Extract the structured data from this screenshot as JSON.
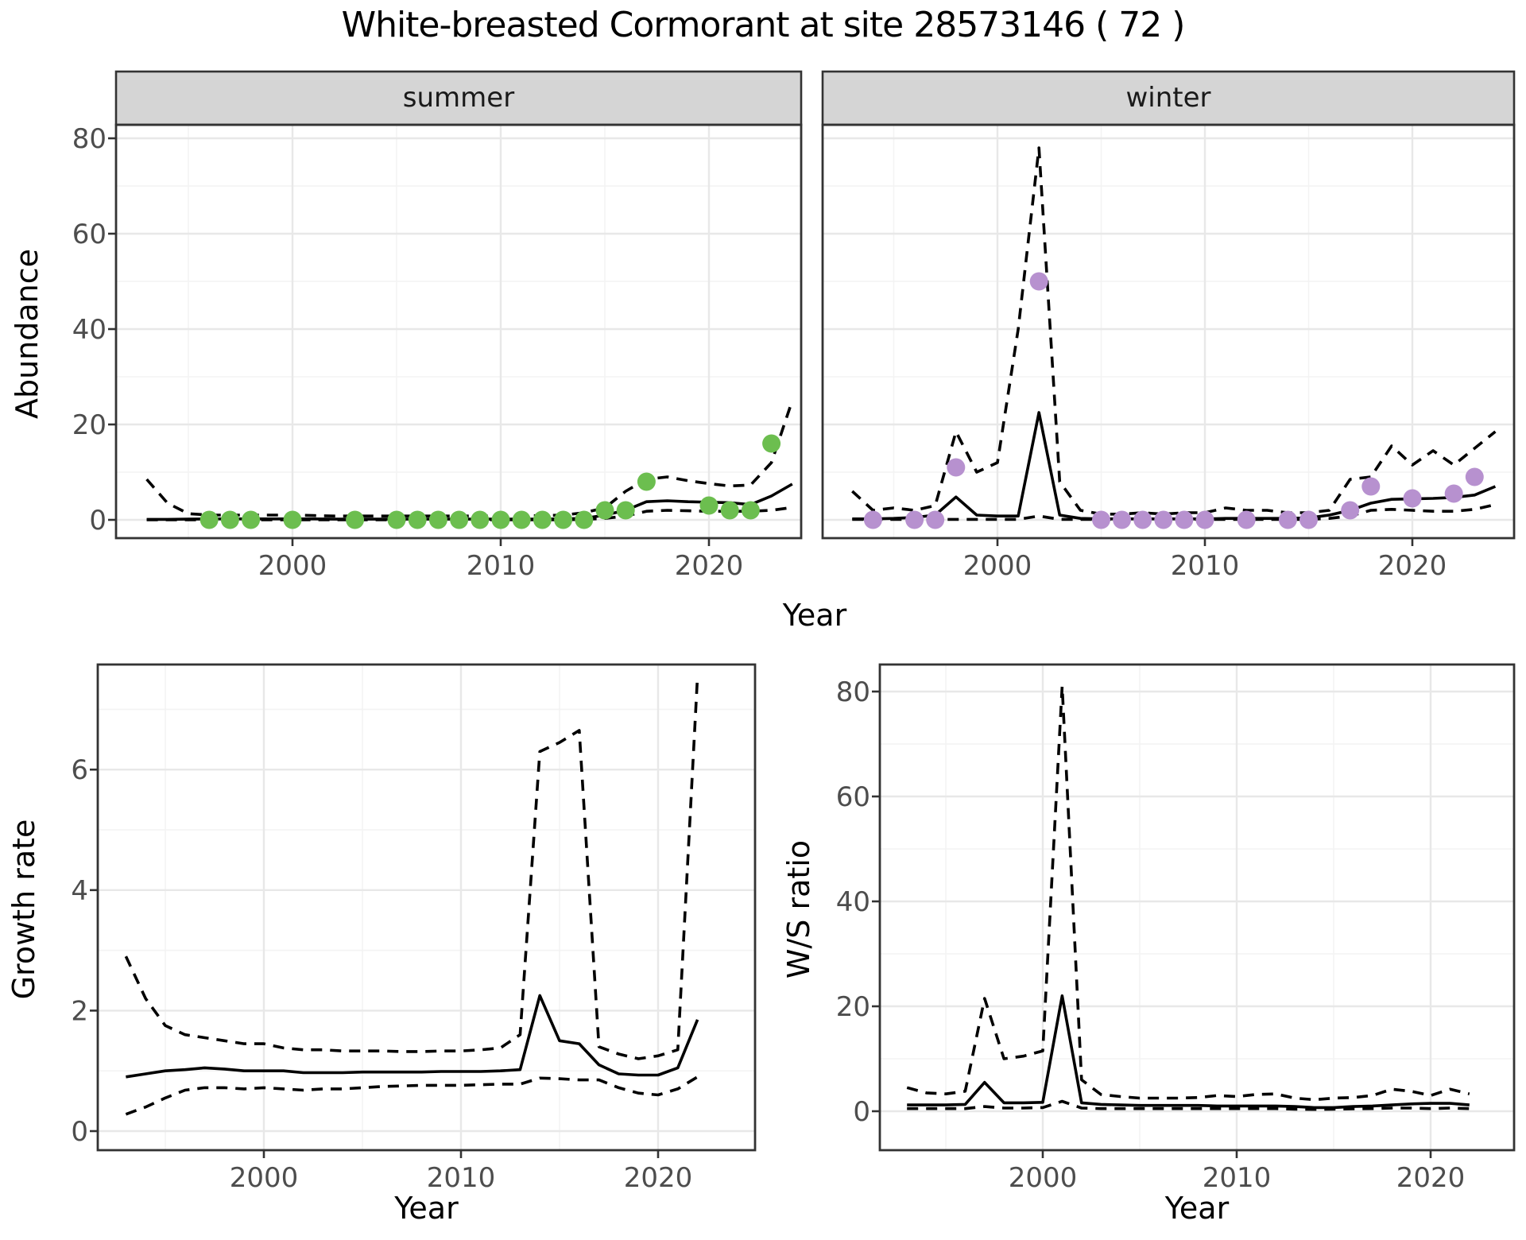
{
  "title": "White-breasted Cormorant at site 28573146 ( 72 )",
  "facets": [
    {
      "label": "summer"
    },
    {
      "label": "winter"
    }
  ],
  "colors": {
    "summer_dot": "#6CBE4F",
    "winter_dot": "#B791CF",
    "line": "#000000",
    "strip_bg": "#D5D5D5",
    "panel_border": "#333333",
    "grid_major": "#E8E8E8",
    "grid_minor": "#F3F3F3",
    "tick_mark": "#333333",
    "tick_label": "#4D4D4D",
    "panel_bg": "#FFFFFF"
  },
  "chart_data": [
    {
      "type": "line",
      "panel": "abundance-summer",
      "facet_label": "summer",
      "xlabel": "Year",
      "ylabel": "Abundance",
      "x_ticks": [
        2000,
        2010,
        2020
      ],
      "x_minor": [
        1995,
        2005,
        2015
      ],
      "y_ticks": [
        0,
        20,
        40,
        60,
        80
      ],
      "y_minor": [
        10,
        30,
        50,
        70
      ],
      "xlim": [
        1991.5,
        2024.6
      ],
      "ylim": [
        -4,
        83
      ],
      "grid": true,
      "legend": "none",
      "series": [
        {
          "name": "fit",
          "style": "solid",
          "x": [
            1993,
            1994,
            1995,
            1996,
            1997,
            1998,
            1999,
            2000,
            2001,
            2002,
            2003,
            2004,
            2005,
            2006,
            2007,
            2008,
            2009,
            2010,
            2011,
            2012,
            2013,
            2014,
            2015,
            2016,
            2017,
            2018,
            2019,
            2020,
            2021,
            2022,
            2023,
            2024
          ],
          "y": [
            0.1,
            0.1,
            0.15,
            0.2,
            0.2,
            0.2,
            0.2,
            0.2,
            0.2,
            0.15,
            0.15,
            0.15,
            0.15,
            0.15,
            0.15,
            0.15,
            0.15,
            0.15,
            0.15,
            0.15,
            0.2,
            0.3,
            1.0,
            2.0,
            3.8,
            4.0,
            3.8,
            3.7,
            3.6,
            3.2,
            5.0,
            7.5
          ]
        },
        {
          "name": "upper-ci",
          "style": "dashed",
          "x": [
            1993,
            1994,
            1995,
            1996,
            1997,
            1998,
            1999,
            2000,
            2001,
            2002,
            2003,
            2004,
            2005,
            2006,
            2007,
            2008,
            2009,
            2010,
            2011,
            2012,
            2013,
            2014,
            2015,
            2016,
            2017,
            2018,
            2019,
            2020,
            2021,
            2022,
            2023,
            2024
          ],
          "y": [
            8.5,
            3.5,
            1.3,
            1.0,
            1.0,
            1.0,
            1.0,
            1.0,
            0.9,
            0.8,
            0.8,
            0.8,
            0.8,
            0.8,
            0.8,
            0.8,
            0.8,
            0.8,
            0.8,
            0.9,
            1.0,
            1.5,
            2.5,
            6.0,
            8.5,
            9.0,
            8.2,
            7.6,
            7.1,
            7.3,
            12.0,
            25.0
          ]
        },
        {
          "name": "lower-ci",
          "style": "dashed",
          "x": [
            1993,
            1994,
            1995,
            1996,
            1997,
            1998,
            1999,
            2000,
            2001,
            2002,
            2003,
            2004,
            2005,
            2006,
            2007,
            2008,
            2009,
            2010,
            2011,
            2012,
            2013,
            2014,
            2015,
            2016,
            2017,
            2018,
            2019,
            2020,
            2021,
            2022,
            2023,
            2024
          ],
          "y": [
            0,
            0,
            0,
            0,
            0,
            0,
            0,
            0,
            0,
            0,
            0,
            0,
            0,
            0,
            0,
            0,
            0,
            0,
            0,
            0,
            0,
            0.1,
            0.3,
            0.8,
            1.8,
            2.0,
            1.9,
            1.8,
            1.8,
            1.8,
            2.0,
            2.6
          ]
        }
      ],
      "points": {
        "color_key": "summer_dot",
        "x": [
          1996,
          1997,
          1998,
          2000,
          2003,
          2005,
          2006,
          2007,
          2008,
          2009,
          2010,
          2011,
          2012,
          2013,
          2014,
          2015,
          2016,
          2017,
          2020,
          2021,
          2022,
          2023
        ],
        "y": [
          0,
          0,
          0,
          0,
          0,
          0,
          0,
          0,
          0,
          0,
          0,
          0,
          0,
          0,
          0,
          2,
          2,
          8,
          3,
          2,
          2,
          16
        ]
      }
    },
    {
      "type": "line",
      "panel": "abundance-winter",
      "facet_label": "winter",
      "xlabel": "Year",
      "ylabel": "Abundance",
      "x_ticks": [
        2000,
        2010,
        2020
      ],
      "x_minor": [
        1995,
        2005,
        2015
      ],
      "y_ticks": [
        0,
        20,
        40,
        60,
        80
      ],
      "y_minor": [
        10,
        30,
        50,
        70
      ],
      "xlim": [
        1991.6,
        2024.9
      ],
      "ylim": [
        -4,
        83
      ],
      "grid": true,
      "legend": "none",
      "series": [
        {
          "name": "fit",
          "style": "solid",
          "x": [
            1993,
            1994,
            1995,
            1996,
            1997,
            1998,
            1999,
            2000,
            2001,
            2002,
            2003,
            2004,
            2005,
            2006,
            2007,
            2008,
            2009,
            2010,
            2011,
            2012,
            2013,
            2014,
            2015,
            2016,
            2017,
            2018,
            2019,
            2020,
            2021,
            2022,
            2023,
            2024
          ],
          "y": [
            0.2,
            0.2,
            0.3,
            0.5,
            1.0,
            4.8,
            1.0,
            0.8,
            0.8,
            22.5,
            1.0,
            0.3,
            0.2,
            0.2,
            0.2,
            0.2,
            0.2,
            0.2,
            0.3,
            0.3,
            0.3,
            0.3,
            0.4,
            1.0,
            2.0,
            3.5,
            4.3,
            4.4,
            4.5,
            4.7,
            5.2,
            7.0
          ]
        },
        {
          "name": "upper-ci",
          "style": "dashed",
          "x": [
            1993,
            1994,
            1995,
            1996,
            1997,
            1998,
            1999,
            2000,
            2001,
            2002,
            2003,
            2004,
            2005,
            2006,
            2007,
            2008,
            2009,
            2010,
            2011,
            2012,
            2013,
            2014,
            2015,
            2016,
            2017,
            2018,
            2019,
            2020,
            2021,
            2022,
            2023,
            2024
          ],
          "y": [
            6.0,
            2.0,
            2.5,
            2.0,
            3.0,
            18.5,
            10.0,
            12.0,
            40.0,
            78.0,
            8.0,
            2.0,
            1.2,
            1.2,
            1.5,
            1.2,
            1.5,
            1.5,
            2.5,
            2.0,
            2.0,
            1.5,
            1.5,
            2.0,
            8.5,
            9.0,
            15.5,
            11.5,
            14.5,
            11.5,
            15.0,
            18.5
          ]
        },
        {
          "name": "lower-ci",
          "style": "dashed",
          "x": [
            1993,
            1994,
            1995,
            1996,
            1997,
            1998,
            1999,
            2000,
            2001,
            2002,
            2003,
            2004,
            2005,
            2006,
            2007,
            2008,
            2009,
            2010,
            2011,
            2012,
            2013,
            2014,
            2015,
            2016,
            2017,
            2018,
            2019,
            2020,
            2021,
            2022,
            2023,
            2024
          ],
          "y": [
            0.1,
            0.1,
            0.1,
            0.1,
            0.1,
            0.1,
            0.1,
            0.1,
            0.1,
            0.8,
            0.1,
            0.1,
            0.1,
            0.1,
            0.1,
            0.1,
            0.1,
            0.1,
            0.1,
            0.1,
            0.1,
            0.1,
            0.1,
            0.3,
            0.8,
            2.0,
            2.2,
            2.0,
            1.8,
            1.8,
            2.2,
            3.2
          ]
        }
      ],
      "points": {
        "color_key": "winter_dot",
        "x": [
          1994,
          1996,
          1997,
          1998,
          2002,
          2005,
          2006,
          2007,
          2008,
          2009,
          2010,
          2012,
          2014,
          2015,
          2017,
          2018,
          2020,
          2022,
          2023
        ],
        "y": [
          0,
          0,
          0,
          11,
          50,
          0,
          0,
          0,
          0,
          0,
          0,
          0,
          0,
          0,
          2,
          7,
          4.5,
          5.5,
          9
        ]
      }
    },
    {
      "type": "line",
      "panel": "growth-rate",
      "facet_label": "",
      "xlabel": "Year",
      "ylabel": "Growth rate",
      "x_ticks": [
        2000,
        2010,
        2020
      ],
      "x_minor": [
        1995,
        2005,
        2015
      ],
      "y_ticks": [
        0,
        2,
        4,
        6
      ],
      "y_minor": [
        1,
        3,
        5,
        7
      ],
      "xlim": [
        1991.6,
        2024.9
      ],
      "ylim": [
        -0.3,
        7.7
      ],
      "grid": true,
      "legend": "none",
      "series": [
        {
          "name": "fit",
          "style": "solid",
          "x": [
            1993,
            1994,
            1995,
            1996,
            1997,
            1998,
            1999,
            2000,
            2001,
            2002,
            2003,
            2004,
            2005,
            2006,
            2007,
            2008,
            2009,
            2010,
            2011,
            2012,
            2013,
            2014,
            2015,
            2016,
            2017,
            2018,
            2019,
            2020,
            2021,
            2022
          ],
          "y": [
            0.9,
            0.95,
            1.0,
            1.02,
            1.05,
            1.03,
            1.0,
            1.0,
            1.0,
            0.97,
            0.97,
            0.97,
            0.98,
            0.98,
            0.98,
            0.98,
            0.99,
            0.99,
            0.99,
            1.0,
            1.02,
            2.25,
            1.5,
            1.45,
            1.1,
            0.95,
            0.93,
            0.93,
            1.05,
            1.85
          ]
        },
        {
          "name": "upper-ci",
          "style": "dashed",
          "x": [
            1993,
            1994,
            1995,
            1996,
            1997,
            1998,
            1999,
            2000,
            2001,
            2002,
            2003,
            2004,
            2005,
            2006,
            2007,
            2008,
            2009,
            2010,
            2011,
            2012,
            2013,
            2014,
            2015,
            2016,
            2017,
            2018,
            2019,
            2020,
            2021,
            2022
          ],
          "y": [
            2.9,
            2.2,
            1.75,
            1.6,
            1.55,
            1.5,
            1.45,
            1.45,
            1.38,
            1.35,
            1.35,
            1.33,
            1.33,
            1.33,
            1.32,
            1.32,
            1.33,
            1.33,
            1.35,
            1.38,
            1.6,
            6.3,
            6.45,
            6.65,
            1.4,
            1.28,
            1.2,
            1.25,
            1.35,
            7.55
          ]
        },
        {
          "name": "lower-ci",
          "style": "dashed",
          "x": [
            1993,
            1994,
            1995,
            1996,
            1997,
            1998,
            1999,
            2000,
            2001,
            2002,
            2003,
            2004,
            2005,
            2006,
            2007,
            2008,
            2009,
            2010,
            2011,
            2012,
            2013,
            2014,
            2015,
            2016,
            2017,
            2018,
            2019,
            2020,
            2021,
            2022
          ],
          "y": [
            0.28,
            0.4,
            0.55,
            0.68,
            0.72,
            0.72,
            0.7,
            0.72,
            0.7,
            0.68,
            0.7,
            0.7,
            0.72,
            0.74,
            0.75,
            0.76,
            0.76,
            0.76,
            0.77,
            0.78,
            0.78,
            0.88,
            0.87,
            0.85,
            0.85,
            0.72,
            0.63,
            0.6,
            0.7,
            0.9
          ]
        }
      ],
      "points": null
    },
    {
      "type": "line",
      "panel": "ws-ratio",
      "facet_label": "",
      "xlabel": "Year",
      "ylabel": "W/S ratio",
      "x_ticks": [
        2000,
        2010,
        2020
      ],
      "x_minor": [
        1995,
        2005,
        2015
      ],
      "y_ticks": [
        0,
        20,
        40,
        60,
        80
      ],
      "y_minor": [
        10,
        30,
        50,
        70
      ],
      "xlim": [
        1991.6,
        2024.3
      ],
      "ylim": [
        -7,
        85
      ],
      "grid": true,
      "legend": "none",
      "series": [
        {
          "name": "fit",
          "style": "solid",
          "x": [
            1993,
            1994,
            1995,
            1996,
            1997,
            1998,
            1999,
            2000,
            2001,
            2002,
            2003,
            2004,
            2005,
            2006,
            2007,
            2008,
            2009,
            2010,
            2011,
            2012,
            2013,
            2014,
            2015,
            2016,
            2017,
            2018,
            2019,
            2020,
            2021,
            2022
          ],
          "y": [
            1.2,
            1.2,
            1.2,
            1.3,
            5.5,
            1.6,
            1.6,
            1.7,
            22.0,
            1.6,
            1.3,
            1.2,
            1.1,
            1.1,
            1.1,
            1.1,
            1.0,
            1.0,
            1.0,
            1.0,
            0.9,
            0.7,
            0.7,
            0.9,
            1.0,
            1.2,
            1.4,
            1.5,
            1.5,
            1.2
          ]
        },
        {
          "name": "upper-ci",
          "style": "dashed",
          "x": [
            1993,
            1994,
            1995,
            1996,
            1997,
            1998,
            1999,
            2000,
            2001,
            2002,
            2003,
            2004,
            2005,
            2006,
            2007,
            2008,
            2009,
            2010,
            2011,
            2012,
            2013,
            2014,
            2015,
            2016,
            2017,
            2018,
            2019,
            2020,
            2021,
            2022
          ],
          "y": [
            4.5,
            3.5,
            3.3,
            3.8,
            21.5,
            10.0,
            10.5,
            11.5,
            81.0,
            6.0,
            3.2,
            2.8,
            2.5,
            2.5,
            2.5,
            2.6,
            3.0,
            2.8,
            3.2,
            3.3,
            2.5,
            2.2,
            2.5,
            2.6,
            3.0,
            4.2,
            3.8,
            3.0,
            4.2,
            3.3
          ]
        },
        {
          "name": "lower-ci",
          "style": "dashed",
          "x": [
            1993,
            1994,
            1995,
            1996,
            1997,
            1998,
            1999,
            2000,
            2001,
            2002,
            2003,
            2004,
            2005,
            2006,
            2007,
            2008,
            2009,
            2010,
            2011,
            2012,
            2013,
            2014,
            2015,
            2016,
            2017,
            2018,
            2019,
            2020,
            2021,
            2022
          ],
          "y": [
            0.5,
            0.5,
            0.5,
            0.5,
            0.9,
            0.6,
            0.6,
            0.7,
            1.9,
            0.6,
            0.5,
            0.5,
            0.5,
            0.5,
            0.5,
            0.5,
            0.5,
            0.5,
            0.5,
            0.5,
            0.4,
            0.35,
            0.4,
            0.45,
            0.5,
            0.6,
            0.6,
            0.5,
            0.6,
            0.5
          ]
        }
      ],
      "points": null
    }
  ]
}
